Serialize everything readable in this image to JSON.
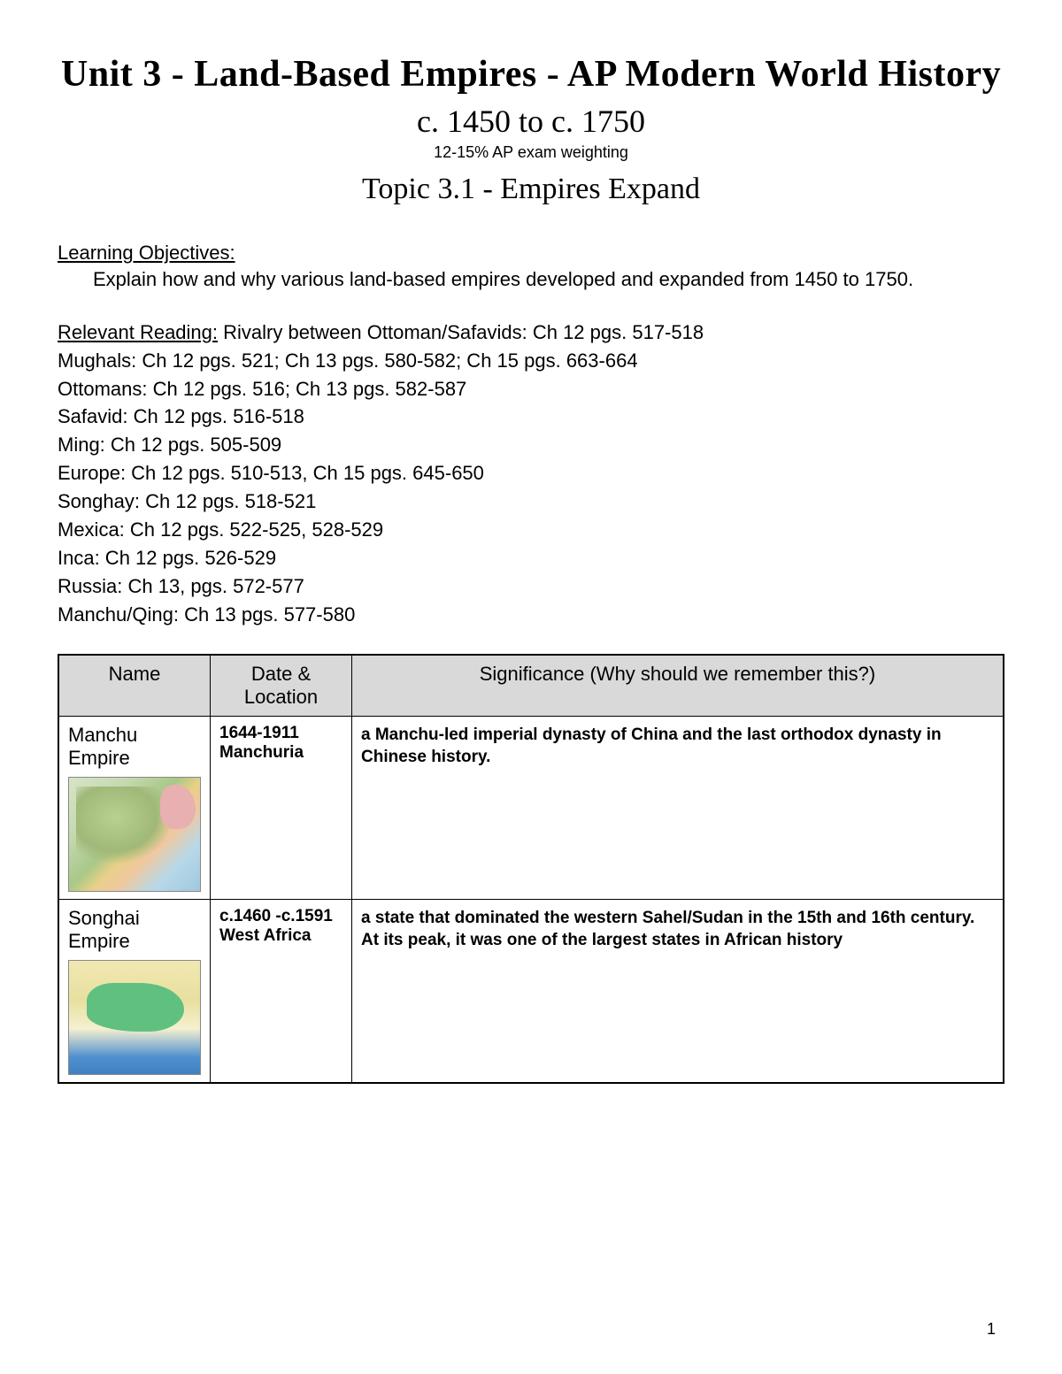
{
  "header": {
    "title": "Unit 3 - Land-Based Empires - AP Modern World History",
    "date_range": "c. 1450 to c. 1750",
    "weighting": "12-15% AP exam weighting",
    "topic": "Topic 3.1 - Empires Expand"
  },
  "objectives": {
    "label": "Learning Objectives:",
    "text": "Explain how and why various land-based empires developed and expanded from 1450 to 1750."
  },
  "reading": {
    "label": "Relevant Reading:",
    "lead": " Rivalry between Ottoman/Safavids: Ch 12 pgs. 517-518",
    "lines": [
      "Mughals: Ch 12 pgs. 521; Ch 13 pgs. 580-582; Ch 15 pgs. 663-664",
      "Ottomans: Ch 12 pgs. 516; Ch 13 pgs. 582-587",
      "Safavid: Ch 12 pgs. 516-518",
      "Ming: Ch 12 pgs. 505-509",
      "Europe: Ch 12 pgs. 510-513, Ch 15 pgs. 645-650",
      "Songhay: Ch 12 pgs. 518-521",
      "Mexica: Ch 12 pgs. 522-525, 528-529",
      "Inca: Ch 12 pgs. 526-529",
      "Russia: Ch 13, pgs. 572-577",
      "Manchu/Qing: Ch 13 pgs. 577-580"
    ]
  },
  "table": {
    "headers": {
      "name": "Name",
      "date": "Date & Location",
      "sig": "Significance (Why should we remember this?)"
    },
    "rows": [
      {
        "name": "Manchu Empire",
        "date": "1644-1911 Manchuria",
        "sig": "a Manchu-led imperial dynasty of China and the last orthodox dynasty in Chinese history.",
        "map_class": "map-manchu"
      },
      {
        "name": "Songhai Empire",
        "date": "c.1460 -c.1591 West Africa",
        "sig": "a state that dominated the western Sahel/Sudan in the 15th and 16th century. At its peak, it was one of the largest states in African history",
        "map_class": "map-songhai"
      }
    ]
  },
  "page_number": "1"
}
